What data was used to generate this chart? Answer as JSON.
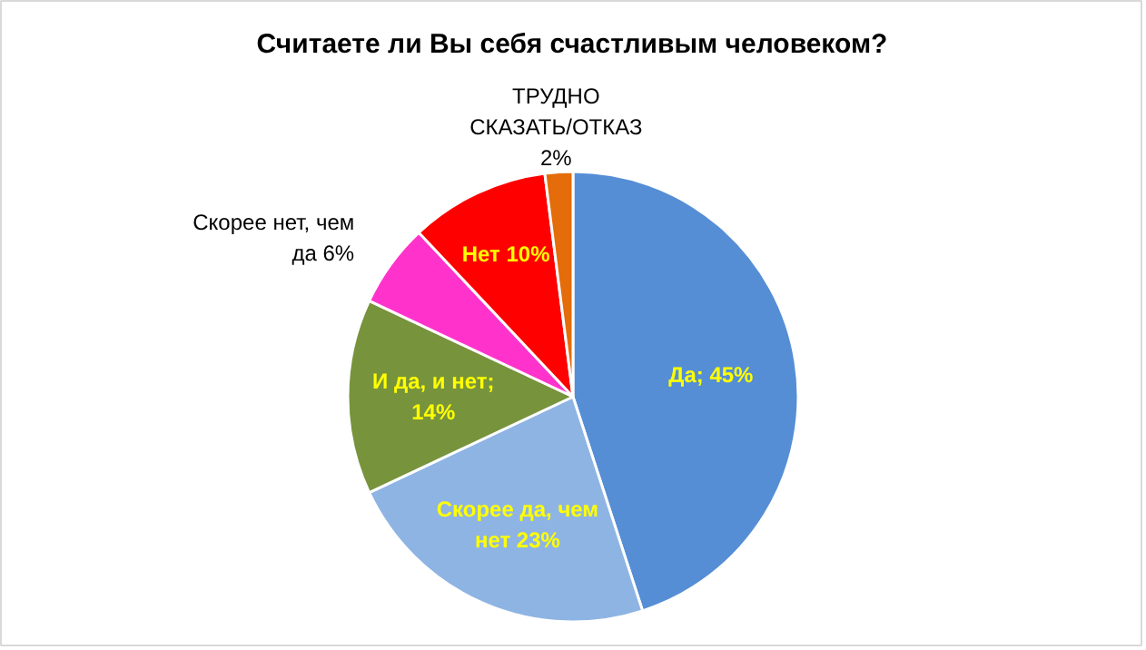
{
  "chart_data": {
    "type": "pie",
    "title": "Считаете ли Вы себя счастливым человеком?",
    "categories": [
      "Да",
      "Скорее да, чем нет",
      "И да, и нет",
      "Скорее нет, чем да",
      "Нет",
      "ТРУДНО СКАЗАТЬ/ОТКАЗ"
    ],
    "values": [
      45,
      23,
      14,
      6,
      10,
      2
    ],
    "colors": [
      "#558ed5",
      "#8eb4e3",
      "#77933c",
      "#ff33cc",
      "#ff0000",
      "#e46c0a"
    ],
    "value_labels": [
      "; 45%",
      "23%",
      "; 14%",
      "6%",
      "10%",
      "2%"
    ]
  }
}
